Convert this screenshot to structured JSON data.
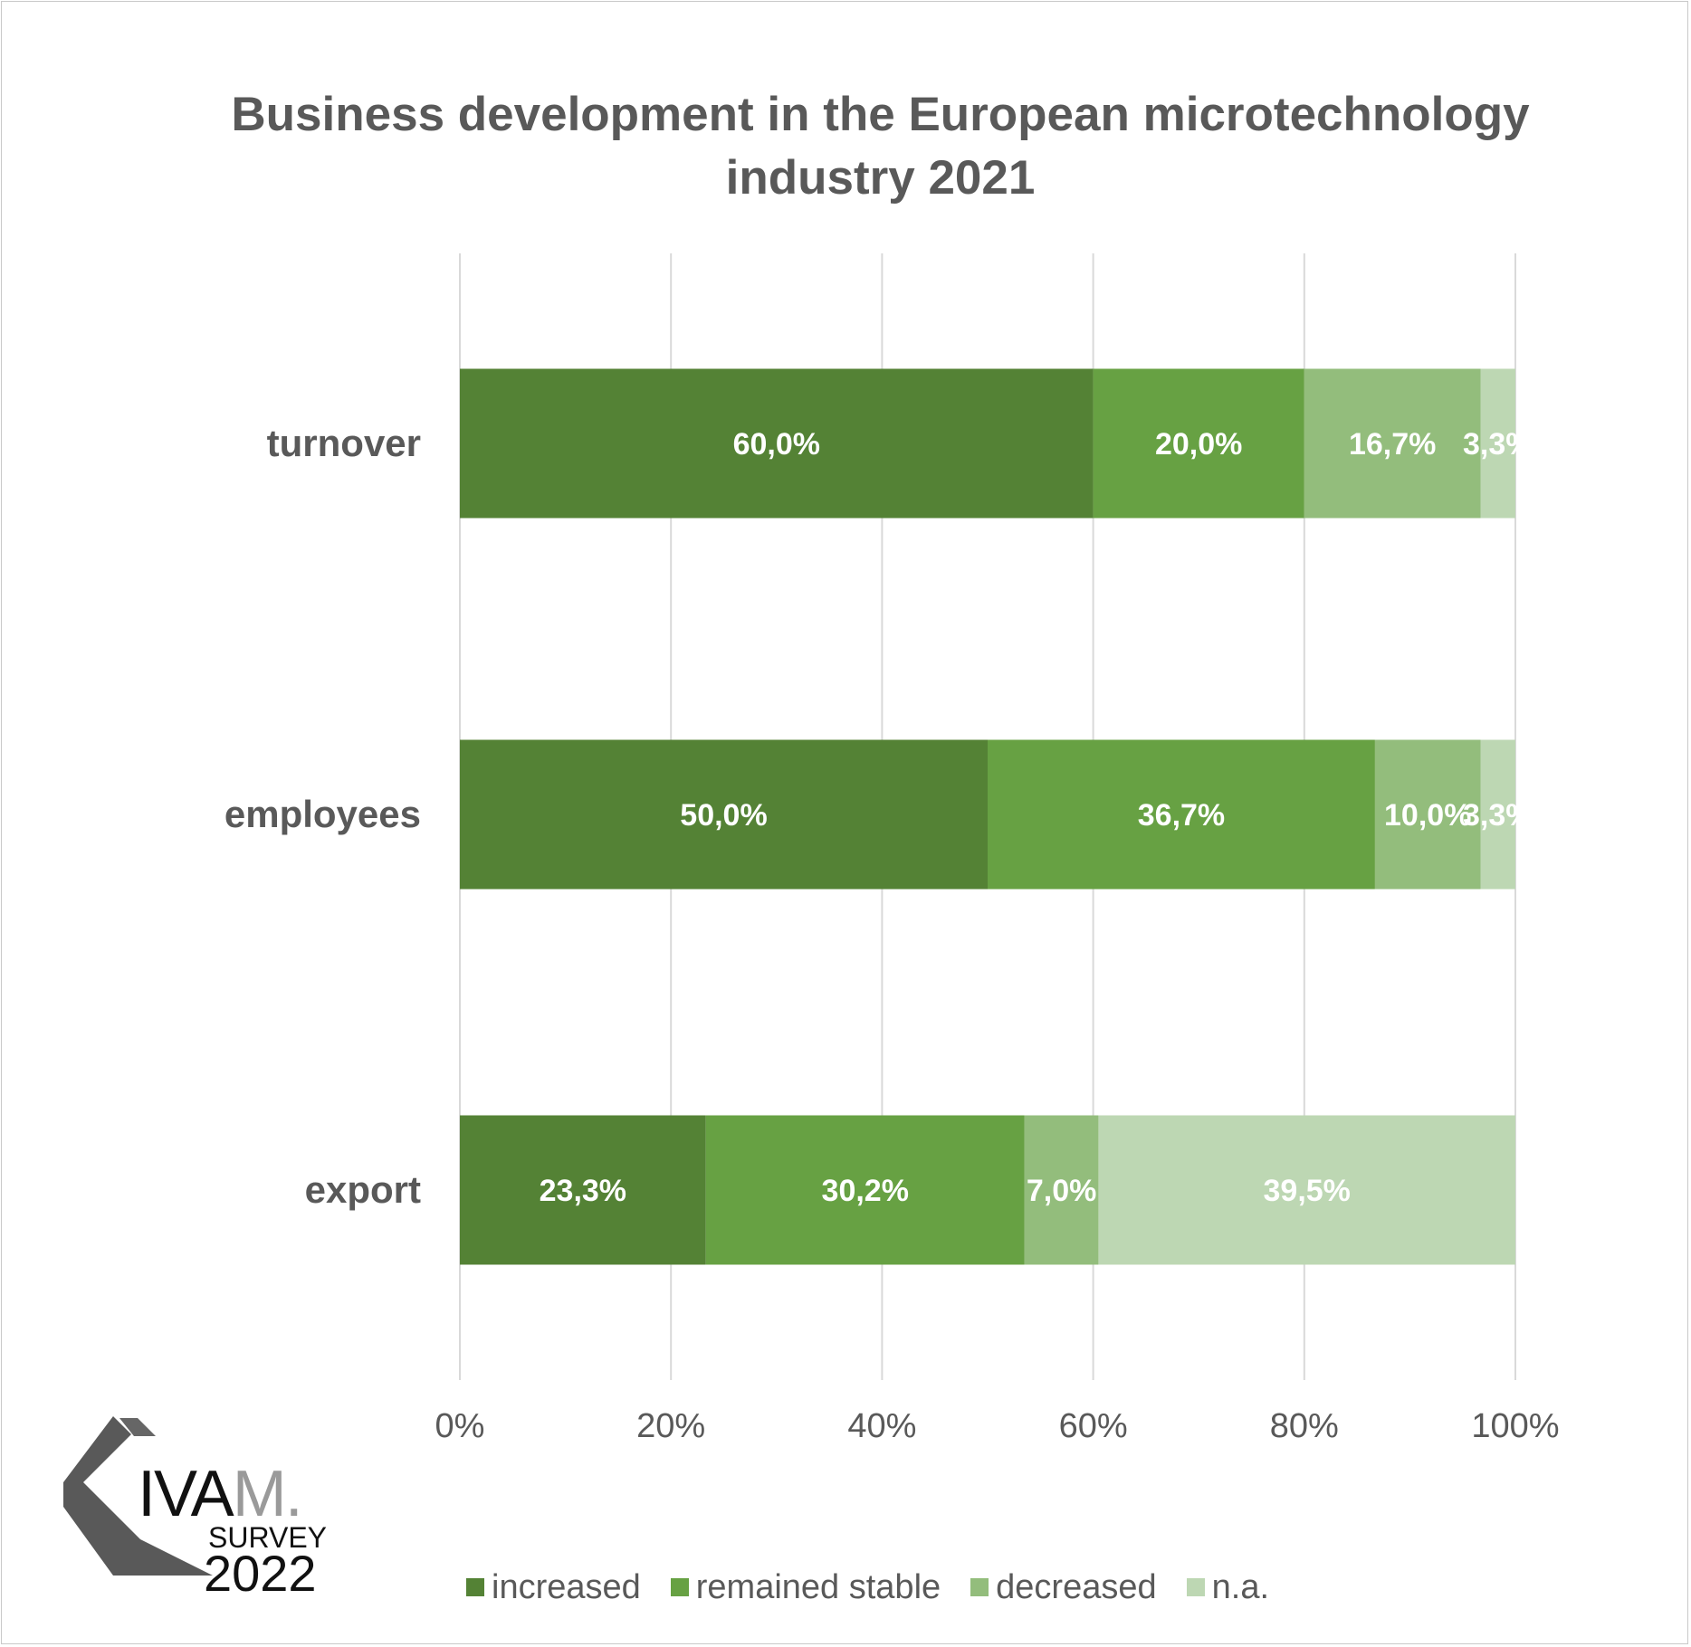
{
  "chart_data": {
    "type": "bar",
    "orientation": "horizontal",
    "stacked": "percent",
    "title": "Business development in the European microtechnology industry 2021",
    "categories": [
      "turnover",
      "employees",
      "export"
    ],
    "series": [
      {
        "name": "increased",
        "color": "#548235",
        "values": [
          60.0,
          50.0,
          23.3
        ],
        "labels": [
          "60,0%",
          "50,0%",
          "23,3%"
        ]
      },
      {
        "name": "remained stable",
        "color": "#67a143",
        "values": [
          20.0,
          36.7,
          30.2
        ],
        "labels": [
          "20,0%",
          "36,7%",
          "30,2%"
        ]
      },
      {
        "name": "decreased",
        "color": "#93bd7c",
        "values": [
          16.7,
          10.0,
          7.0
        ],
        "labels": [
          "16,7%",
          "10,0%",
          "7,0%"
        ]
      },
      {
        "name": "n.a.",
        "color": "#bdd7b3",
        "values": [
          3.3,
          3.3,
          39.5
        ],
        "labels": [
          "3,3%",
          "3,3%",
          "39,5%"
        ]
      }
    ],
    "xlim": [
      0,
      100
    ],
    "xticks": [
      0,
      20,
      40,
      60,
      80,
      100
    ],
    "xtick_labels": [
      "0%",
      "20%",
      "40%",
      "60%",
      "80%",
      "100%"
    ],
    "grid": true,
    "legend_position": "bottom"
  },
  "logo": {
    "brand": "IVAM.",
    "brand_dark": "IVA",
    "brand_light": "M.",
    "line1": "SURVEY",
    "line2": "2022"
  }
}
